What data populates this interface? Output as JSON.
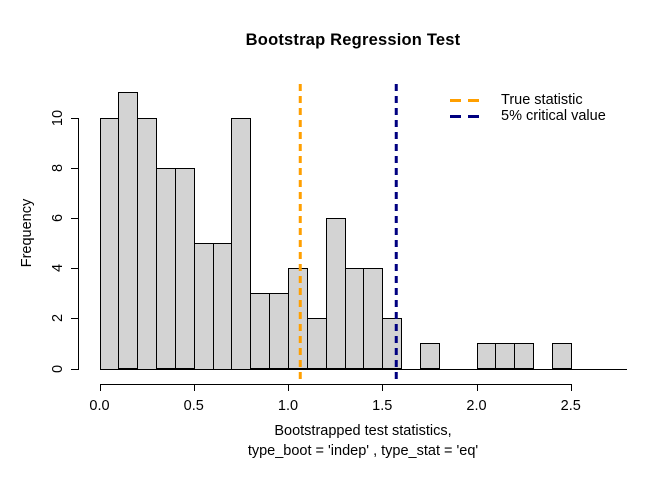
{
  "window": {
    "background": "#ffffff"
  },
  "chart_data": {
    "type": "bar",
    "subtype": "histogram",
    "title": "Bootstrap Regression Test",
    "xlabel_line1": "Bootstrapped test statistics,",
    "xlabel_line2": "type_boot = 'indep' , type_stat = 'eq'",
    "ylabel": "Frequency",
    "bin_start": 0.0,
    "bin_width": 0.1,
    "counts": [
      10,
      11,
      10,
      8,
      8,
      5,
      5,
      10,
      3,
      3,
      4,
      2,
      6,
      4,
      4,
      2,
      0,
      1,
      0,
      0,
      1,
      1,
      1,
      0,
      1,
      0,
      0,
      0
    ],
    "x_ticks": [
      0.0,
      0.5,
      1.0,
      1.5,
      2.0,
      2.5
    ],
    "x_tick_labels": [
      "0.0",
      "0.5",
      "1.0",
      "1.5",
      "2.0",
      "2.5"
    ],
    "y_ticks": [
      0,
      2,
      4,
      6,
      8,
      10
    ],
    "y_tick_labels": [
      "0",
      "2",
      "4",
      "6",
      "8",
      "10"
    ],
    "xlim": [
      0.0,
      2.8
    ],
    "ylim": [
      0,
      11
    ],
    "grid": false,
    "bar_fill": "#d3d3d3",
    "bar_border": "#000000",
    "legend_position": "topright",
    "vlines": [
      {
        "name": "true-statistic",
        "x": 1.066,
        "color": "#ff9f00",
        "label": "True statistic",
        "style": "dashed"
      },
      {
        "name": "critical-value",
        "x": 1.575,
        "color": "#000080",
        "label": "5% critical value",
        "style": "dashed"
      }
    ]
  }
}
